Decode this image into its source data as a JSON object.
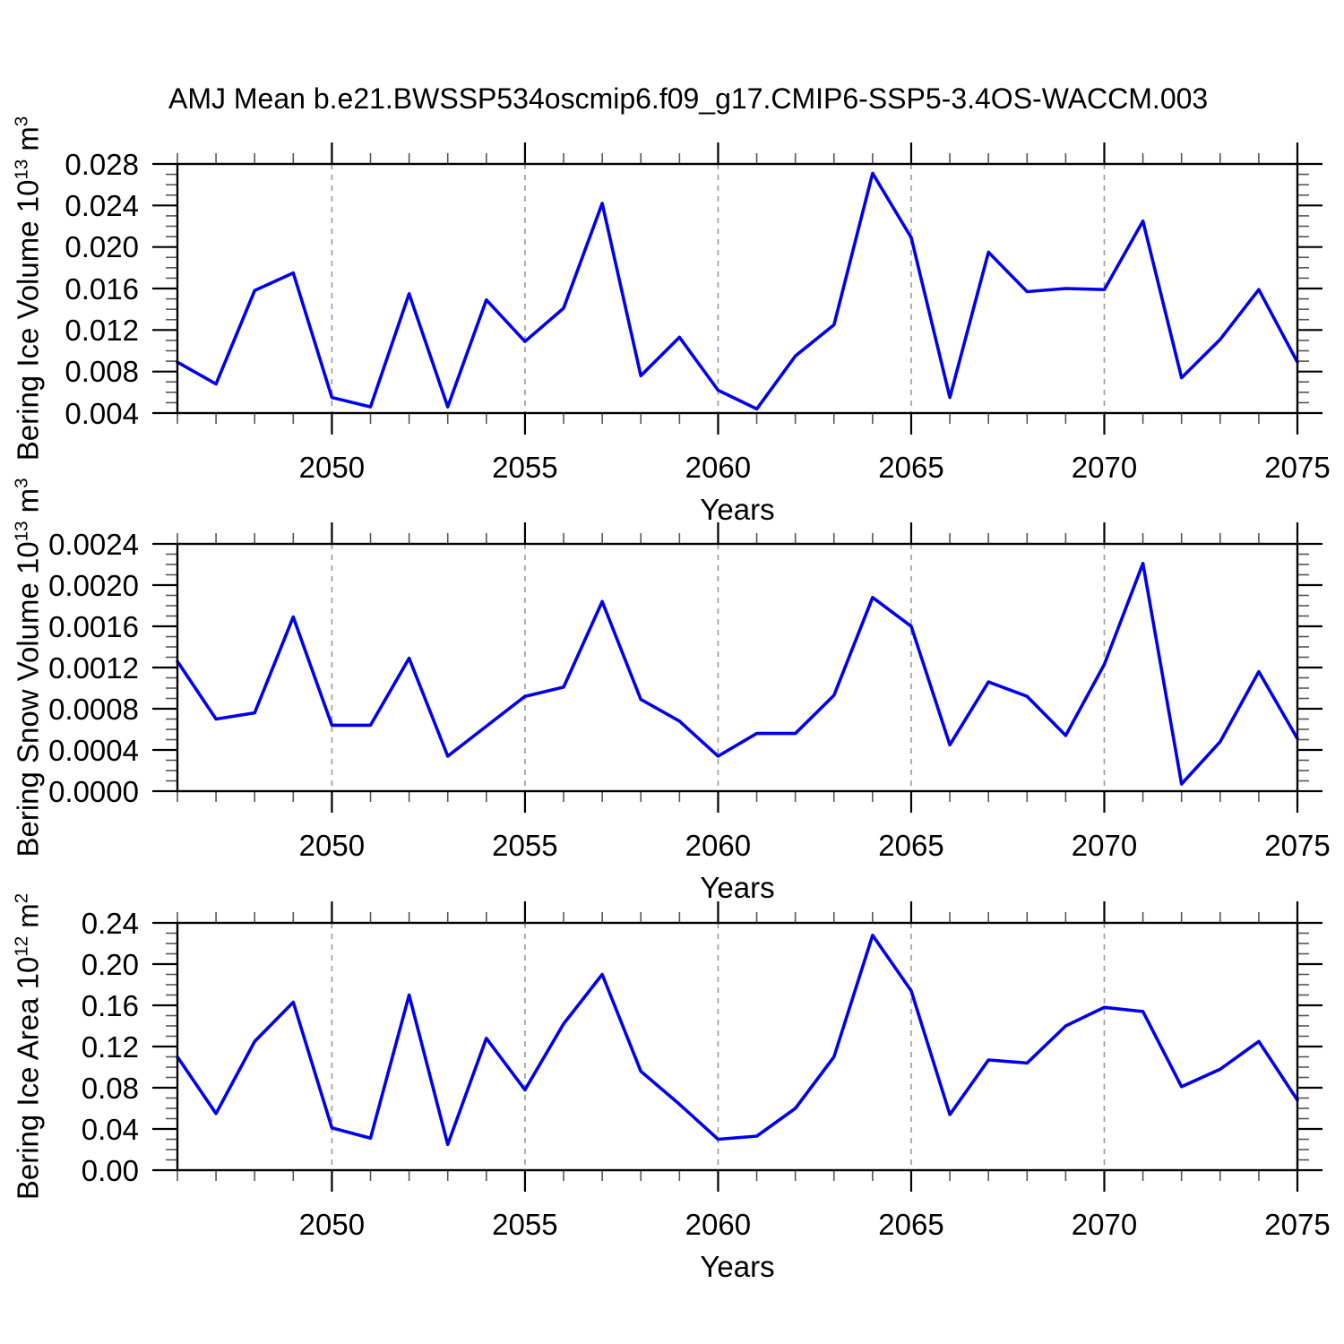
{
  "title": "AMJ Mean b.e21.BWSSP534oscmip6.f09_g17.CMIP6-SSP5-3.4OS-WACCM.003",
  "colors": {
    "line": "#0000ee",
    "axis": "#000000",
    "minor_tick": "#555555",
    "gridline": "#999999",
    "background": "#ffffff"
  },
  "x_axis": {
    "label": "Years",
    "min": 2046,
    "max": 2075,
    "major_tick_values": [
      2050,
      2055,
      2060,
      2065,
      2070,
      2075
    ],
    "major_tick_labels": [
      "2050",
      "2055",
      "2060",
      "2065",
      "2070",
      "2075"
    ],
    "minor_step": 1,
    "gridline_values": [
      2050,
      2055,
      2060,
      2065,
      2070
    ]
  },
  "chart_data": [
    {
      "type": "line",
      "title": "",
      "ylabel": {
        "prefix": "Bering Ice Volume 10",
        "exp": "13",
        "unit": " m",
        "unit_exp": "3"
      },
      "xlabel": "Years",
      "ylim": [
        0.004,
        0.028
      ],
      "ytick_major_step": 0.004,
      "ytick_minor_step": 0.001,
      "ytick_labels": [
        "0.004",
        "0.008",
        "0.012",
        "0.016",
        "0.020",
        "0.024",
        "0.028"
      ],
      "grid": "vertical-dashed",
      "legend": "none",
      "x": [
        2046,
        2047,
        2048,
        2049,
        2050,
        2051,
        2052,
        2053,
        2054,
        2055,
        2056,
        2057,
        2058,
        2059,
        2060,
        2061,
        2062,
        2063,
        2064,
        2065,
        2066,
        2067,
        2068,
        2069,
        2070,
        2071,
        2072,
        2073,
        2074,
        2075
      ],
      "values": [
        0.0089,
        0.0068,
        0.0158,
        0.0175,
        0.0055,
        0.0046,
        0.0155,
        0.0046,
        0.0149,
        0.0109,
        0.0141,
        0.0242,
        0.0076,
        0.0113,
        0.0062,
        0.0044,
        0.0095,
        0.0125,
        0.0271,
        0.0209,
        0.0055,
        0.0195,
        0.0157,
        0.016,
        0.0159,
        0.0225,
        0.0074,
        0.0111,
        0.0159,
        0.0089
      ]
    },
    {
      "type": "line",
      "title": "",
      "ylabel": {
        "prefix": "Bering Snow Volume 10",
        "exp": "13",
        "unit": " m",
        "unit_exp": "3"
      },
      "xlabel": "Years",
      "ylim": [
        0.0,
        0.0024
      ],
      "ytick_major_step": 0.0004,
      "ytick_minor_step": 0.0001,
      "ytick_labels": [
        "0.0000",
        "0.0004",
        "0.0008",
        "0.0012",
        "0.0016",
        "0.0020",
        "0.0024"
      ],
      "grid": "vertical-dashed",
      "legend": "none",
      "x": [
        2046,
        2047,
        2048,
        2049,
        2050,
        2051,
        2052,
        2053,
        2054,
        2055,
        2056,
        2057,
        2058,
        2059,
        2060,
        2061,
        2062,
        2063,
        2064,
        2065,
        2066,
        2067,
        2068,
        2069,
        2070,
        2071,
        2072,
        2073,
        2074,
        2075
      ],
      "values": [
        0.00126,
        0.0007,
        0.00076,
        0.00169,
        0.00064,
        0.00064,
        0.00129,
        0.00034,
        0.00063,
        0.00092,
        0.00101,
        0.00184,
        0.00089,
        0.00068,
        0.00034,
        0.00056,
        0.00056,
        0.00093,
        0.00188,
        0.0016,
        0.00045,
        0.00106,
        0.00092,
        0.00054,
        0.00123,
        0.00221,
        7e-05,
        0.00048,
        0.00116,
        0.00051
      ]
    },
    {
      "type": "line",
      "title": "",
      "ylabel": {
        "prefix": "Bering Ice Area 10",
        "exp": "12",
        "unit": " m",
        "unit_exp": "2"
      },
      "xlabel": "Years",
      "ylim": [
        0.0,
        0.24
      ],
      "ytick_major_step": 0.04,
      "ytick_minor_step": 0.01,
      "ytick_labels": [
        "0.00",
        "0.04",
        "0.08",
        "0.12",
        "0.16",
        "0.20",
        "0.24"
      ],
      "grid": "vertical-dashed",
      "legend": "none",
      "x": [
        2046,
        2047,
        2048,
        2049,
        2050,
        2051,
        2052,
        2053,
        2054,
        2055,
        2056,
        2057,
        2058,
        2059,
        2060,
        2061,
        2062,
        2063,
        2064,
        2065,
        2066,
        2067,
        2068,
        2069,
        2070,
        2071,
        2072,
        2073,
        2074,
        2075
      ],
      "values": [
        0.11,
        0.055,
        0.125,
        0.163,
        0.041,
        0.031,
        0.17,
        0.025,
        0.128,
        0.078,
        0.142,
        0.19,
        0.096,
        0.064,
        0.03,
        0.033,
        0.06,
        0.11,
        0.228,
        0.174,
        0.054,
        0.107,
        0.104,
        0.14,
        0.158,
        0.154,
        0.081,
        0.098,
        0.125,
        0.068
      ]
    }
  ]
}
